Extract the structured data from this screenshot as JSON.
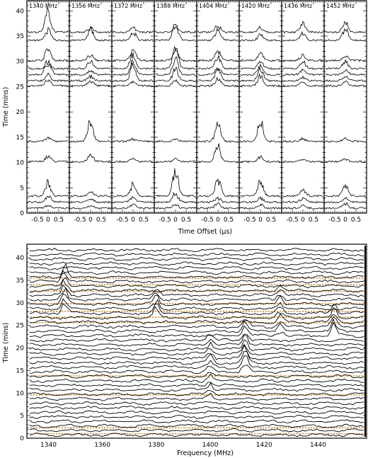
{
  "chart_data": [
    {
      "type": "line",
      "panels": [
        "1340 MHz",
        "1356 MHz",
        "1372 MHz",
        "1388 MHz",
        "1404 MHz",
        "1420 MHz",
        "1436 MHz",
        "1452 MHz"
      ],
      "xlabel": "Time Offset (μs)",
      "ylabel": "Time (mins)",
      "xlim": [
        -1.0,
        1.0
      ],
      "ylim": [
        0,
        42
      ],
      "x_tick_labels": [
        "-0.5",
        "0",
        "0.5"
      ],
      "y_tick_labels": [
        "0",
        "5",
        "10",
        "15",
        "20",
        "25",
        "30",
        "35",
        "40"
      ],
      "trace_times": [
        0.8,
        2.0,
        3.2,
        10.0,
        14.0,
        25.0,
        26.0,
        27.2,
        28.4,
        30.0,
        34.0,
        35.6
      ],
      "trace_peaks": [
        [
          0.6,
          1.2,
          2.8,
          1.2,
          1.0,
          1.5,
          1.2,
          3.5,
          0.8,
          2.5,
          2.2,
          4.5
        ],
        [
          0.5,
          0.6,
          0.8,
          1.5,
          4.2,
          1.0,
          0.9,
          0.8,
          1.6,
          1.2,
          2.2,
          1.0
        ],
        [
          0.8,
          0.9,
          2.5,
          0.6,
          0.6,
          0.9,
          3.2,
          3.0,
          3.5,
          2.5,
          1.8,
          1.0
        ],
        [
          0.7,
          2.0,
          5.5,
          0.6,
          0.5,
          1.0,
          2.5,
          4.0,
          4.5,
          2.0,
          3.5,
          1.0
        ],
        [
          1.0,
          0.9,
          3.5,
          3.5,
          3.5,
          1.5,
          2.5,
          1.5,
          2.5,
          2.0,
          2.5,
          1.5
        ],
        [
          0.8,
          0.8,
          3.2,
          1.0,
          4.2,
          2.0,
          2.5,
          2.0,
          1.5,
          1.5,
          1.2,
          1.0
        ],
        [
          0.6,
          0.8,
          1.4,
          0.6,
          0.6,
          0.8,
          0.8,
          0.9,
          1.5,
          1.0,
          1.5,
          1.8
        ],
        [
          1.0,
          0.9,
          2.2,
          0.6,
          0.6,
          0.8,
          0.8,
          1.0,
          1.5,
          1.0,
          2.5,
          2.2
        ]
      ]
    },
    {
      "type": "line",
      "xlabel": "Frequency (MHz)",
      "ylabel": "Time (mins)",
      "xlim": [
        1332,
        1458
      ],
      "ylim": [
        0,
        43
      ],
      "x_tick_labels": [
        "1340",
        "1360",
        "1380",
        "1400",
        "1420",
        "1440"
      ],
      "y_tick_labels": [
        "0",
        "5",
        "10",
        "15",
        "20",
        "25",
        "30",
        "35",
        "40"
      ],
      "n_traces": 42,
      "highlighted_times": [
        1,
        2.3,
        9.6,
        13.8,
        25.6,
        26.8,
        28.1,
        29.8,
        32.6,
        34.0,
        35.5
      ],
      "highlight_color": "#e8892b",
      "trace_color": "#000000",
      "features": [
        {
          "frequency": 1346,
          "time_range": [
            27,
            36
          ],
          "height": 3.5
        },
        {
          "frequency": 1380,
          "time_range": [
            26,
            32
          ],
          "height": 2.5
        },
        {
          "frequency": 1400,
          "time_range": [
            8,
            22
          ],
          "height": 2.0
        },
        {
          "frequency": 1413,
          "time_range": [
            14,
            25
          ],
          "height": 3.0
        },
        {
          "frequency": 1426,
          "time_range": [
            22,
            33
          ],
          "height": 2.0
        },
        {
          "frequency": 1446,
          "time_range": [
            22,
            28
          ],
          "height": 3.0
        }
      ]
    }
  ]
}
